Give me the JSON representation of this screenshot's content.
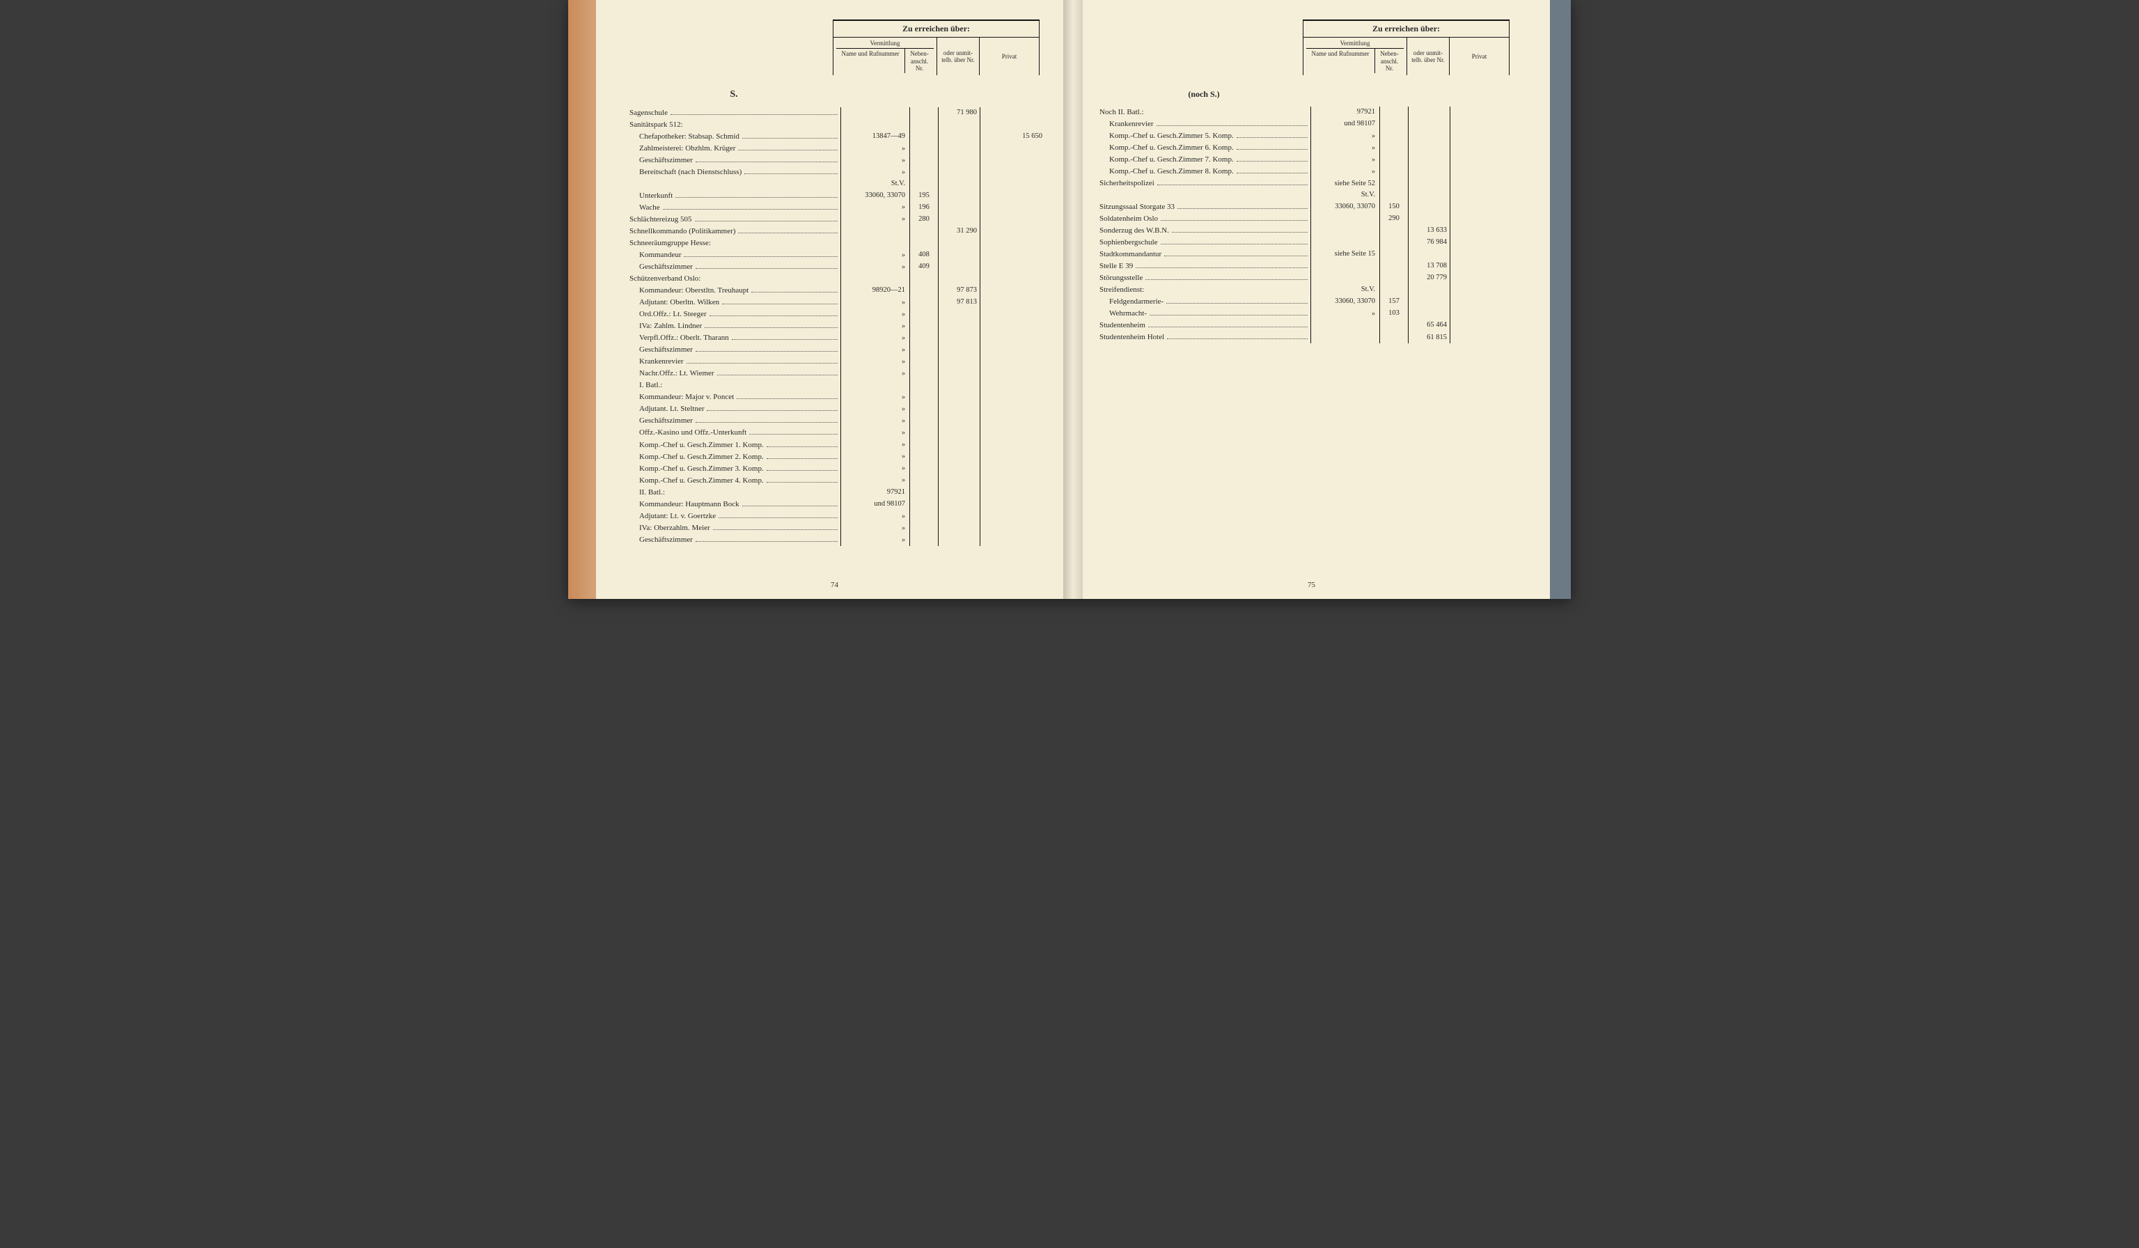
{
  "header": {
    "title": "Zu erreichen über:",
    "vermittlung": "Vermittlung",
    "name_ruf": "Name und Rufnummer",
    "neben": "Neben-anschl. Nr.",
    "oder": "oder unmit-telb. über Nr.",
    "privat": "Privat"
  },
  "left": {
    "section_letter": "S.",
    "rows": [
      {
        "label": "Sagenschule",
        "name": "",
        "neben": "",
        "oder": "71 980",
        "priv": ""
      },
      {
        "label": "Sanitätspark 512:",
        "noleader": true
      },
      {
        "label": "Chefapotheker: Stabsap. Schmid",
        "indent": 1,
        "name": "13847—49",
        "neben": "",
        "oder": "",
        "priv": "15 650"
      },
      {
        "label": "Zahlmeisterei: Obzhlm. Krüger",
        "indent": 1,
        "name": "»",
        "neben": "",
        "oder": "",
        "priv": ""
      },
      {
        "label": "Geschäftszimmer",
        "indent": 1,
        "name": "»",
        "neben": "",
        "oder": "",
        "priv": ""
      },
      {
        "label": "Bereitschaft (nach Dienstschluss)",
        "indent": 1,
        "name": "»",
        "neben": "",
        "oder": "",
        "priv": ""
      },
      {
        "label": "",
        "name": "St.V.",
        "neben": "",
        "oder": "",
        "priv": "",
        "noleader": true
      },
      {
        "label": "Unterkunft",
        "indent": 1,
        "name": "33060, 33070",
        "neben": "195",
        "oder": "",
        "priv": ""
      },
      {
        "label": "Wache",
        "indent": 1,
        "name": "»",
        "neben": "196",
        "oder": "",
        "priv": ""
      },
      {
        "label": "Schlächtereizug 505",
        "name": "»",
        "neben": "280",
        "oder": "",
        "priv": ""
      },
      {
        "label": "Schnellkommando (Politikammer)",
        "name": "",
        "neben": "",
        "oder": "31 290",
        "priv": ""
      },
      {
        "label": "Schneeräumgruppe Hesse:",
        "noleader": true
      },
      {
        "label": "Kommandeur",
        "indent": 1,
        "name": "»",
        "neben": "408",
        "oder": "",
        "priv": ""
      },
      {
        "label": "Geschäftszimmer",
        "indent": 1,
        "name": "»",
        "neben": "409",
        "oder": "",
        "priv": ""
      },
      {
        "label": "Schützenverband Oslo:",
        "noleader": true
      },
      {
        "label": "Kommandeur: Oberstltn. Treuhaupt",
        "indent": 1,
        "name": "98920—21",
        "neben": "",
        "oder": "97 873",
        "priv": ""
      },
      {
        "label": "Adjutant: Oberltn. Wilken",
        "indent": 1,
        "name": "»",
        "neben": "",
        "oder": "97 813",
        "priv": ""
      },
      {
        "label": "Ord.Offz.: Lt. Steeger",
        "indent": 1,
        "name": "»",
        "neben": "",
        "oder": "",
        "priv": ""
      },
      {
        "label": "IVa: Zahlm. Lindner",
        "indent": 1,
        "name": "»",
        "neben": "",
        "oder": "",
        "priv": ""
      },
      {
        "label": "Verpfl.Offz.: Oberlt. Tharann",
        "indent": 1,
        "name": "»",
        "neben": "",
        "oder": "",
        "priv": ""
      },
      {
        "label": "Geschäftszimmer",
        "indent": 1,
        "name": "»",
        "neben": "",
        "oder": "",
        "priv": ""
      },
      {
        "label": "Krankenrevier",
        "indent": 1,
        "name": "»",
        "neben": "",
        "oder": "",
        "priv": ""
      },
      {
        "label": "Nachr.Offz.: Lt. Wiemer",
        "indent": 1,
        "name": "»",
        "neben": "",
        "oder": "",
        "priv": ""
      },
      {
        "label": "I. Batl.:",
        "indent": 1,
        "noleader": true
      },
      {
        "label": "Kommandeur: Major v. Poncet",
        "indent": 1,
        "name": "»",
        "neben": "",
        "oder": "",
        "priv": ""
      },
      {
        "label": "Adjutant. Lt. Steltner",
        "indent": 1,
        "name": "»",
        "neben": "",
        "oder": "",
        "priv": ""
      },
      {
        "label": "Geschäftszimmer",
        "indent": 1,
        "name": "»",
        "neben": "",
        "oder": "",
        "priv": ""
      },
      {
        "label": "Offz.-Kasino und Offz.-Unterkunft",
        "indent": 1,
        "name": "»",
        "neben": "",
        "oder": "",
        "priv": ""
      },
      {
        "label": "Komp.-Chef u. Gesch.Zimmer 1. Komp.",
        "indent": 1,
        "name": "»",
        "neben": "",
        "oder": "",
        "priv": ""
      },
      {
        "label": "Komp.-Chef u. Gesch.Zimmer 2. Komp.",
        "indent": 1,
        "name": "»",
        "neben": "",
        "oder": "",
        "priv": ""
      },
      {
        "label": "Komp.-Chef u. Gesch.Zimmer 3. Komp.",
        "indent": 1,
        "name": "»",
        "neben": "",
        "oder": "",
        "priv": ""
      },
      {
        "label": "Komp.-Chef u. Gesch.Zimmer 4. Komp.",
        "indent": 1,
        "name": "»",
        "neben": "",
        "oder": "",
        "priv": ""
      },
      {
        "label": "II. Batl.:",
        "indent": 1,
        "name": "97921",
        "neben": "",
        "oder": "",
        "priv": "",
        "noleader": true
      },
      {
        "label": "Kommandeur: Hauptmann Bock",
        "indent": 1,
        "name": "und 98107",
        "neben": "",
        "oder": "",
        "priv": ""
      },
      {
        "label": "Adjutant: Lt. v. Goertzke",
        "indent": 1,
        "name": "»",
        "neben": "",
        "oder": "",
        "priv": ""
      },
      {
        "label": "IVa: Oberzahlm. Meier",
        "indent": 1,
        "name": "»",
        "neben": "",
        "oder": "",
        "priv": ""
      },
      {
        "label": "Geschäftszimmer",
        "indent": 1,
        "name": "»",
        "neben": "",
        "oder": "",
        "priv": ""
      }
    ],
    "pagenum": "74"
  },
  "right": {
    "section_note": "(noch S.)",
    "rows": [
      {
        "label": "Noch II. Batl.:",
        "name": "97921",
        "neben": "",
        "oder": "",
        "priv": "",
        "noleader": true
      },
      {
        "label": "Krankenrevier",
        "indent": 1,
        "name": "und 98107",
        "neben": "",
        "oder": "",
        "priv": ""
      },
      {
        "label": "Komp.-Chef u. Gesch.Zimmer 5. Komp.",
        "indent": 1,
        "name": "»",
        "neben": "",
        "oder": "",
        "priv": ""
      },
      {
        "label": "Komp.-Chef u. Gesch.Zimmer 6. Komp.",
        "indent": 1,
        "name": "»",
        "neben": "",
        "oder": "",
        "priv": ""
      },
      {
        "label": "Komp.-Chef u. Gesch.Zimmer 7. Komp.",
        "indent": 1,
        "name": "»",
        "neben": "",
        "oder": "",
        "priv": ""
      },
      {
        "label": "Komp.-Chef u. Gesch.Zimmer 8. Komp.",
        "indent": 1,
        "name": "»",
        "neben": "",
        "oder": "",
        "priv": ""
      },
      {
        "label": "Sicherheitspolizei",
        "name": "siehe Seite 52",
        "neben": "",
        "oder": "",
        "priv": ""
      },
      {
        "label": "",
        "name": "St.V.",
        "neben": "",
        "oder": "",
        "priv": "",
        "noleader": true
      },
      {
        "label": "Sitzungssaal Storgate 33",
        "name": "33060, 33070",
        "neben": "150",
        "oder": "",
        "priv": ""
      },
      {
        "label": "Soldatenheim Oslo",
        "name": "",
        "neben": "290",
        "oder": "",
        "priv": ""
      },
      {
        "label": "Sonderzug des W.B.N.",
        "name": "",
        "neben": "",
        "oder": "13 633",
        "priv": ""
      },
      {
        "label": "Sophienbergschule",
        "name": "",
        "neben": "",
        "oder": "76 984",
        "priv": ""
      },
      {
        "label": "Stadtkommandantur",
        "name": "siehe Seite 15",
        "neben": "",
        "oder": "",
        "priv": ""
      },
      {
        "label": "Stelle E 39",
        "name": "",
        "neben": "",
        "oder": "13 708",
        "priv": ""
      },
      {
        "label": "Störungsstelle",
        "name": "",
        "neben": "",
        "oder": "20 779",
        "priv": ""
      },
      {
        "label": "Streifendienst:",
        "name": "St.V.",
        "neben": "",
        "oder": "",
        "priv": "",
        "noleader": true
      },
      {
        "label": "Feldgendarmerie-",
        "indent": 1,
        "name": "33060, 33070",
        "neben": "157",
        "oder": "",
        "priv": ""
      },
      {
        "label": "Wehrmacht-",
        "indent": 1,
        "name": "»",
        "neben": "103",
        "oder": "",
        "priv": ""
      },
      {
        "label": "Studentenheim",
        "name": "",
        "neben": "",
        "oder": "65 464",
        "priv": ""
      },
      {
        "label": "Studentenheim Hotel",
        "name": "",
        "neben": "",
        "oder": "61 815",
        "priv": ""
      }
    ],
    "pagenum": "75"
  }
}
